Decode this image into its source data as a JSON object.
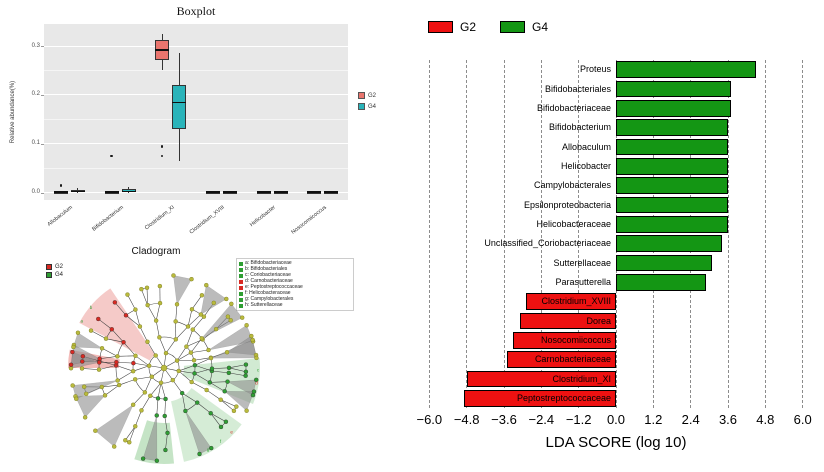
{
  "chart_data": [
    {
      "type": "box",
      "panel": "boxplot",
      "title": "Boxplot",
      "ylabel": "Relative abundance(%)",
      "xlabel": "",
      "ylim": [
        0,
        0.33
      ],
      "yticks": [
        0.0,
        0.1,
        0.2,
        0.3
      ],
      "ytick_labels": [
        "0.0",
        "0.1",
        "0.2",
        "0.3"
      ],
      "grid": true,
      "legend_position": "right",
      "groups": [
        {
          "name": "G2",
          "color": "#e9756e"
        },
        {
          "name": "G4",
          "color": "#2ab4ba"
        }
      ],
      "categories": [
        "Allobaculum",
        "Bifidobacterium",
        "Clostridium_XI",
        "Clostridium_XVIII",
        "Helicobacter",
        "Nosocomiicoccus"
      ],
      "boxes": [
        {
          "category": "Allobaculum",
          "G2": {
            "lo": 0,
            "q1": 0,
            "med": 0.001,
            "q3": 0.002,
            "hi": 0.003,
            "outliers": [
              0.015
            ]
          },
          "G4": {
            "lo": 0,
            "q1": 0.001,
            "med": 0.003,
            "q3": 0.006,
            "hi": 0.01,
            "outliers": []
          }
        },
        {
          "category": "Bifidobacterium",
          "G2": {
            "lo": 0,
            "q1": 0,
            "med": 0.001,
            "q3": 0.002,
            "hi": 0.003,
            "outliers": [
              0.075
            ]
          },
          "G4": {
            "lo": 0,
            "q1": 0.001,
            "med": 0.003,
            "q3": 0.007,
            "hi": 0.012,
            "outliers": []
          }
        },
        {
          "category": "Clostridium_XI",
          "G2": {
            "lo": 0.25,
            "q1": 0.272,
            "med": 0.292,
            "q3": 0.313,
            "hi": 0.325,
            "outliers": [
              0.095,
              0.075
            ]
          },
          "G4": {
            "lo": 0.065,
            "q1": 0.13,
            "med": 0.185,
            "q3": 0.22,
            "hi": 0.285,
            "outliers": []
          }
        },
        {
          "category": "Clostridium_XVIII",
          "G2": {
            "lo": 0,
            "q1": 0,
            "med": 0.001,
            "q3": 0.002,
            "hi": 0.003,
            "outliers": []
          },
          "G4": {
            "lo": 0,
            "q1": 0,
            "med": 0.001,
            "q3": 0.002,
            "hi": 0.004,
            "outliers": []
          }
        },
        {
          "category": "Helicobacter",
          "G2": {
            "lo": 0,
            "q1": 0,
            "med": 0.001,
            "q3": 0.002,
            "hi": 0.003,
            "outliers": []
          },
          "G4": {
            "lo": 0,
            "q1": 0,
            "med": 0.001,
            "q3": 0.002,
            "hi": 0.004,
            "outliers": []
          }
        },
        {
          "category": "Nosocomiicoccus",
          "G2": {
            "lo": 0,
            "q1": 0,
            "med": 0.001,
            "q3": 0.002,
            "hi": 0.003,
            "outliers": []
          },
          "G4": {
            "lo": 0,
            "q1": 0,
            "med": 0.001,
            "q3": 0.002,
            "hi": 0.003,
            "outliers": []
          }
        }
      ]
    },
    {
      "type": "cladogram",
      "panel": "cladogram",
      "title": "Cladogram",
      "legend": [
        {
          "name": "G2",
          "color": "#d92a23"
        },
        {
          "name": "G4",
          "color": "#2f9e33"
        }
      ],
      "taxa_legend": [
        {
          "label": "a: Bifidobacteriaceae",
          "color": "#2f9e33"
        },
        {
          "label": "b: Bifidobacteriales",
          "color": "#2f9e33"
        },
        {
          "label": "c: Coriobacteriaceae",
          "color": "#2f9e33"
        },
        {
          "label": "d: Carnobacteriaceae",
          "color": "#d92a23"
        },
        {
          "label": "e: Peptostreptococcaceae",
          "color": "#d92a23"
        },
        {
          "label": "f: Helicobacteraceae",
          "color": "#2f9e33"
        },
        {
          "label": "g: Campylobacterales",
          "color": "#2f9e33"
        },
        {
          "label": "h: Sutterellaceae",
          "color": "#2f9e33"
        }
      ]
    },
    {
      "type": "bar",
      "panel": "lda",
      "orientation": "horizontal",
      "title": "",
      "xlabel": "LDA SCORE (log 10)",
      "xlim": [
        -6.3,
        6.3
      ],
      "xticks": [
        -6.0,
        -4.8,
        -3.6,
        -2.4,
        -1.2,
        0.0,
        1.2,
        2.4,
        3.6,
        4.8,
        6.0
      ],
      "xtick_labels": [
        "−6.0",
        "−4.8",
        "−3.6",
        "−2.4",
        "−1.2",
        "0.0",
        "1.2",
        "2.4",
        "3.6",
        "4.8",
        "6.0"
      ],
      "grid": "dashed-vertical",
      "legend_position": "top-left",
      "groups": [
        {
          "name": "G2",
          "color": "#ee1111"
        },
        {
          "name": "G4",
          "color": "#149614"
        }
      ],
      "items": [
        {
          "label": "Proteus",
          "group": "G4",
          "value": 4.5
        },
        {
          "label": "Bifidobacteriales",
          "group": "G4",
          "value": 3.7
        },
        {
          "label": "Bifidobacteriaceae",
          "group": "G4",
          "value": 3.7
        },
        {
          "label": "Bifidobacterium",
          "group": "G4",
          "value": 3.6
        },
        {
          "label": "Allobaculum",
          "group": "G4",
          "value": 3.6
        },
        {
          "label": "Helicobacter",
          "group": "G4",
          "value": 3.6
        },
        {
          "label": "Campylobacterales",
          "group": "G4",
          "value": 3.6
        },
        {
          "label": "Epsilonproteobacteria",
          "group": "G4",
          "value": 3.6
        },
        {
          "label": "Helicobacteraceae",
          "group": "G4",
          "value": 3.6
        },
        {
          "label": "Unclassified_Coriobacteriaceae",
          "group": "G4",
          "value": 3.4
        },
        {
          "label": "Sutterellaceae",
          "group": "G4",
          "value": 3.1
        },
        {
          "label": "Parasutterella",
          "group": "G4",
          "value": 2.9
        },
        {
          "label": "Clostridium_XVIII",
          "group": "G2",
          "value": -2.9
        },
        {
          "label": "Dorea",
          "group": "G2",
          "value": -3.1
        },
        {
          "label": "Nosocomiicoccus",
          "group": "G2",
          "value": -3.3
        },
        {
          "label": "Carnobacteriaceae",
          "group": "G2",
          "value": -3.5
        },
        {
          "label": "Clostridium_XI",
          "group": "G2",
          "value": -4.8
        },
        {
          "label": "Peptostreptococcaceae",
          "group": "G2",
          "value": -4.9
        }
      ]
    }
  ]
}
